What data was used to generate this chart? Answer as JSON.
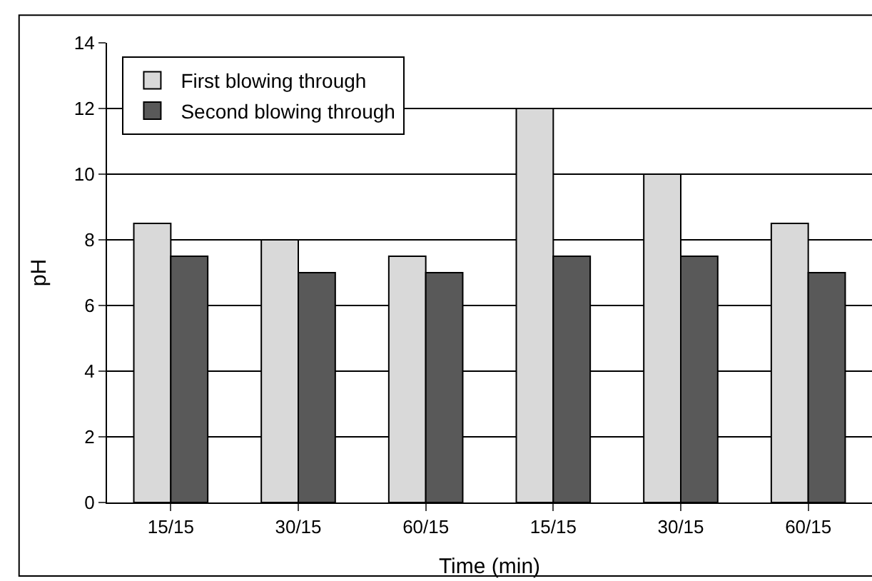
{
  "chart_data": {
    "type": "bar",
    "xlabel": "Time (min)",
    "ylabel": "pH",
    "categories": [
      "15/15",
      "30/15",
      "60/15",
      "15/15",
      "30/15",
      "60/15"
    ],
    "series": [
      {
        "name": "First blowing through",
        "color": "#d9d9d9",
        "values": [
          8.5,
          8,
          7.5,
          12,
          10,
          8.5
        ]
      },
      {
        "name": "Second blowing through",
        "color": "#595959",
        "values": [
          7.5,
          7,
          7,
          7.5,
          7.5,
          7
        ]
      }
    ],
    "ylim": [
      0,
      14
    ],
    "yticks": [
      0,
      2,
      4,
      6,
      8,
      10,
      12,
      14
    ],
    "grid": "y",
    "legend": "top left"
  }
}
